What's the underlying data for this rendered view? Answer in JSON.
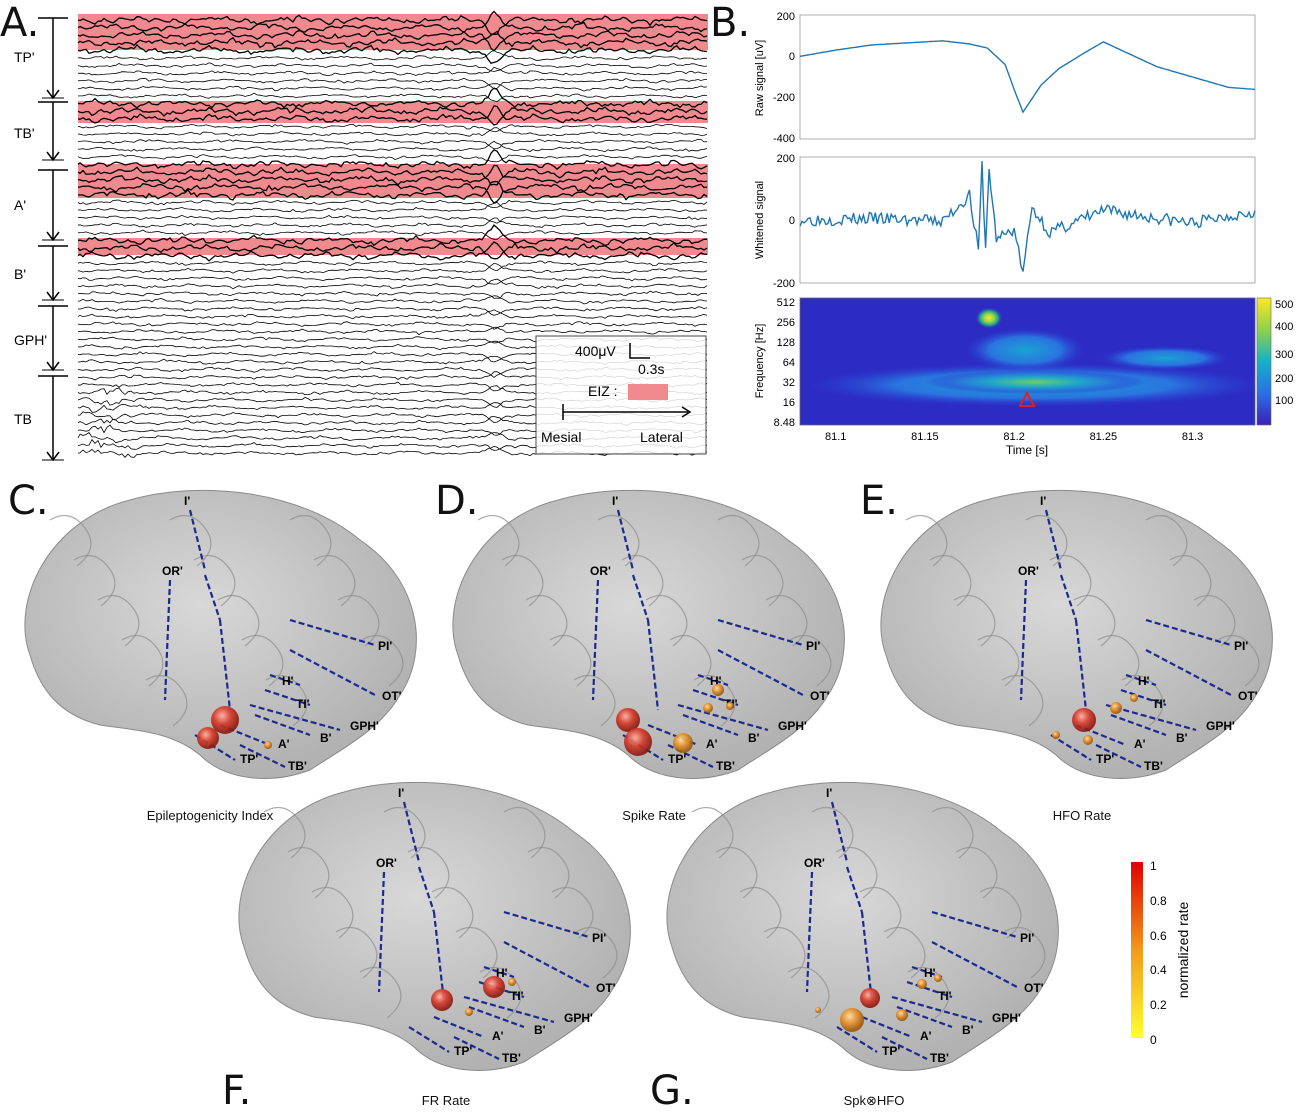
{
  "panels": {
    "A": "A.",
    "B": "B.",
    "C": "C.",
    "D": "D.",
    "E": "E.",
    "F": "F.",
    "G": "G."
  },
  "panelA": {
    "groups": [
      {
        "name": "TP'"
      },
      {
        "name": "TB'"
      },
      {
        "name": "A'"
      },
      {
        "name": "B'"
      },
      {
        "name": "GPH'"
      },
      {
        "name": "TB"
      }
    ],
    "legend": {
      "amplitude": "400μV",
      "time": "0.3s",
      "eiz": "EIZ :",
      "mesial": "Mesial",
      "lateral": "Lateral"
    },
    "colors": {
      "eiz": "#f08a8f",
      "trace": "#000000"
    }
  },
  "panelB": {
    "raw": {
      "ylabel": "Raw signal [uV]",
      "yticks": [
        "200",
        "0",
        "-200",
        "-400"
      ]
    },
    "whitened": {
      "ylabel": "Whitened signal",
      "yticks": [
        "200",
        "0",
        "-200"
      ]
    },
    "tf": {
      "ylabel": "Frequency [Hz]",
      "yticks": [
        "512",
        "256",
        "128",
        "64",
        "32",
        "16",
        "8.48"
      ],
      "xlabel": "Time [s]",
      "xticks": [
        "81.1",
        "81.15",
        "81.2",
        "81.25",
        "81.3"
      ],
      "cticks": [
        "500",
        "400",
        "300",
        "200",
        "100"
      ]
    },
    "colors": {
      "line": "#1f77b4"
    }
  },
  "chart_data": [
    {
      "type": "line",
      "ylabel": "Raw signal [uV]",
      "ylim": [
        -400,
        200
      ],
      "x": [
        81.08,
        81.1,
        81.12,
        81.14,
        81.16,
        81.175,
        81.185,
        81.195,
        81.2,
        81.205,
        81.215,
        81.225,
        81.24,
        81.25,
        81.26,
        81.28,
        81.3,
        81.32,
        81.335
      ],
      "values": [
        0,
        30,
        55,
        65,
        75,
        60,
        40,
        -40,
        -160,
        -270,
        -140,
        -60,
        20,
        70,
        30,
        -50,
        -100,
        -150,
        -160
      ]
    },
    {
      "type": "line",
      "ylabel": "Whitened signal",
      "ylim": [
        -200,
        200
      ],
      "x": [
        81.08,
        81.12,
        81.16,
        81.175,
        81.18,
        81.182,
        81.184,
        81.186,
        81.19,
        81.2,
        81.205,
        81.21,
        81.22,
        81.25,
        81.3,
        81.335
      ],
      "values": [
        0,
        5,
        -5,
        80,
        -100,
        170,
        -90,
        160,
        -60,
        -30,
        -170,
        40,
        -40,
        30,
        -10,
        30
      ]
    },
    {
      "type": "heatmap",
      "xlabel": "Time [s]",
      "ylabel": "Frequency [Hz]",
      "xticks": [
        "81.1",
        "81.15",
        "81.2",
        "81.25",
        "81.3"
      ],
      "yticks": [
        "512",
        "256",
        "128",
        "64",
        "32",
        "16",
        "8.48"
      ],
      "clim": [
        0,
        500
      ]
    }
  ],
  "brains": [
    {
      "id": "C",
      "caption": "Epileptogenicity Index"
    },
    {
      "id": "D",
      "caption": "Spike Rate"
    },
    {
      "id": "E",
      "caption": "HFO Rate"
    },
    {
      "id": "F",
      "caption": "FR Rate"
    },
    {
      "id": "G",
      "caption": "Spk⊗HFO"
    }
  ],
  "electrodes": [
    "I'",
    "OR'",
    "PI'",
    "OT'",
    "H'",
    "TI'",
    "GPH'",
    "B'",
    "A'",
    "TP'",
    "TB'"
  ],
  "colorbar": {
    "label": "normalized rate",
    "ticks": [
      "1",
      "0.8",
      "0.6",
      "0.4",
      "0.2",
      "0"
    ]
  }
}
